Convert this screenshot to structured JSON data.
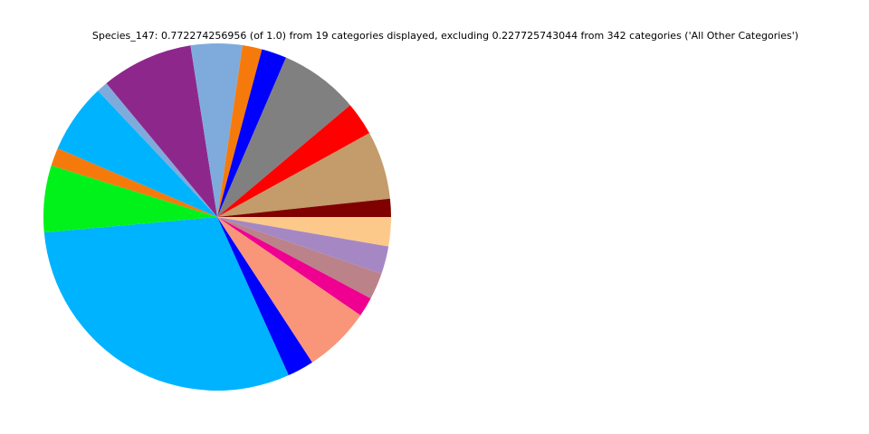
{
  "chart_data": {
    "type": "pie",
    "title": "Species_147: 0.772274256956 (of 1.0) from 19 categories displayed, excluding 0.227725743044 from 342 categories ('All Other Categories')",
    "values": [
      0.021,
      0.02,
      0.019,
      0.014,
      0.048,
      0.019,
      0.234,
      0.048,
      0.013,
      0.05,
      0.008,
      0.066,
      0.037,
      0.014,
      0.018,
      0.057,
      0.024,
      0.049,
      0.013
    ],
    "colors": [
      "#fdc98a",
      "#a588c3",
      "#bc8289",
      "#ef0090",
      "#f9967a",
      "#0000ff",
      "#00b3ff",
      "#00f21a",
      "#f67a0b",
      "#00b3ff",
      "#7fabdc",
      "#8e278c",
      "#7fabdc",
      "#f67a0b",
      "#0000ff",
      "#808080",
      "#ff0000",
      "#c49b6a",
      "#800000"
    ]
  }
}
